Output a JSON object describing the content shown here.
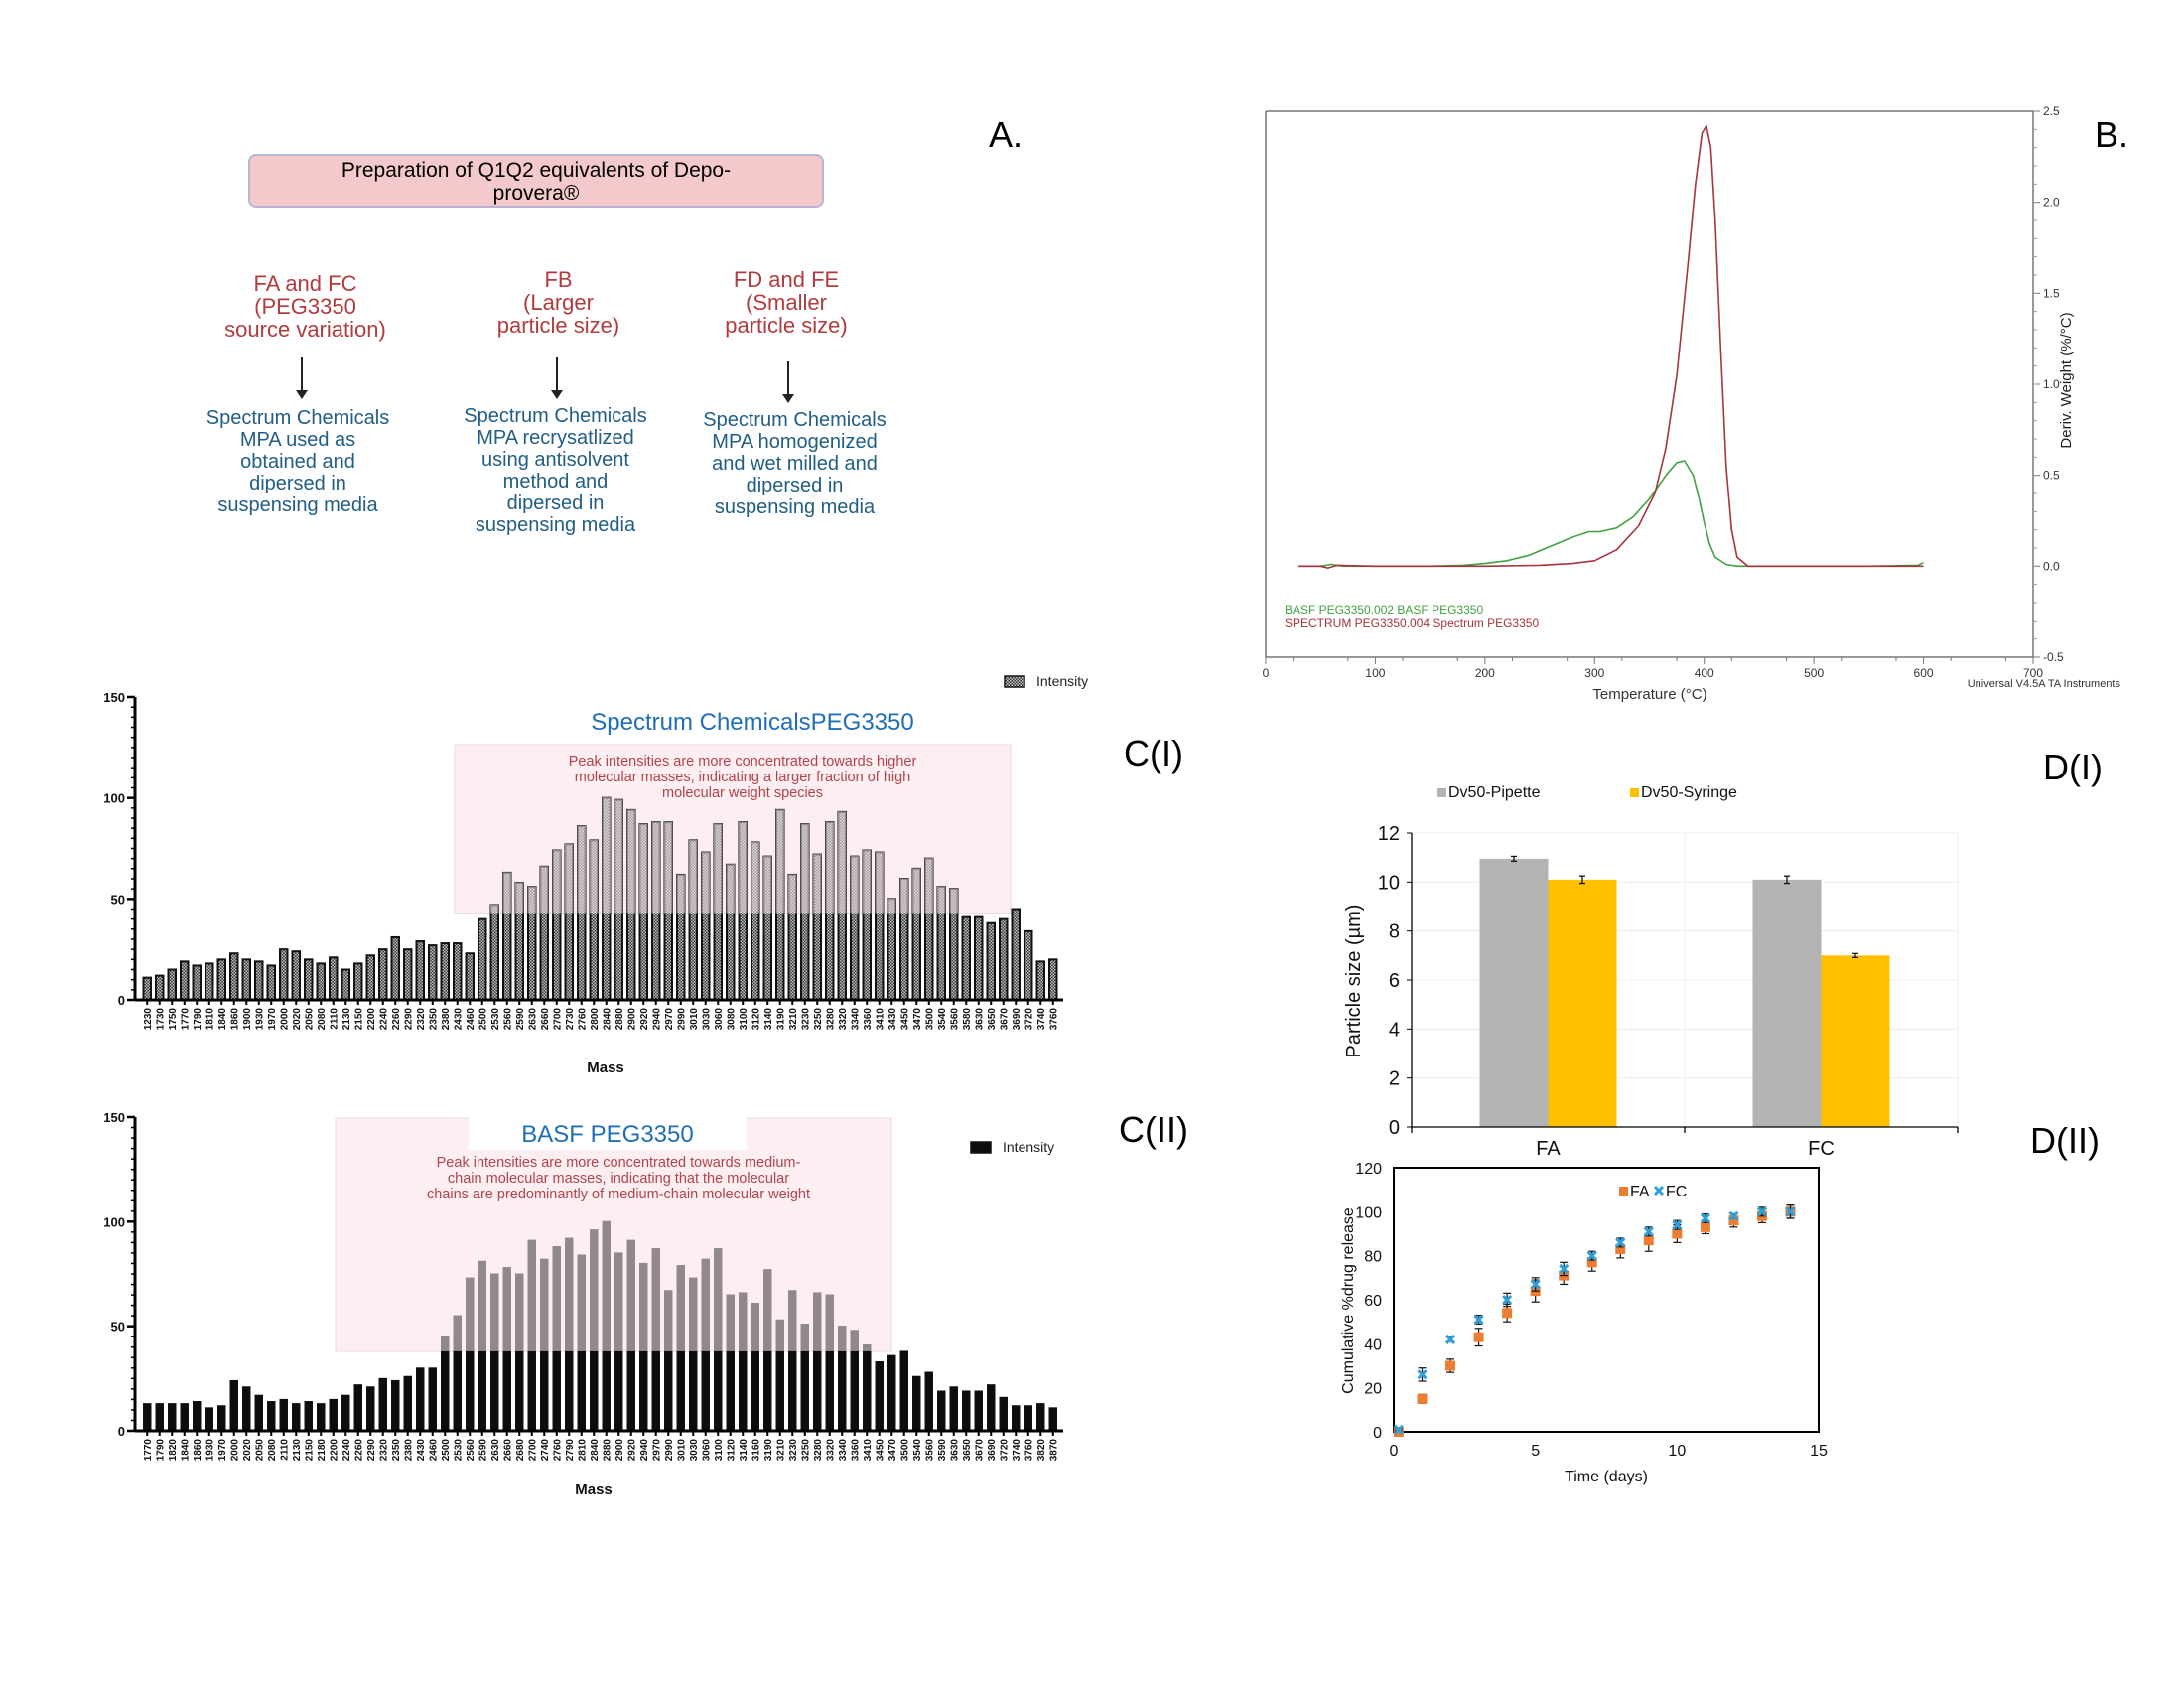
{
  "panel_labels": {
    "a": "A.",
    "b": "B.",
    "c1": "C(I)",
    "c2": "C(II)",
    "d1": "D(I)",
    "d2": "D(II)"
  },
  "flowchart": {
    "title": "Preparation of Q1Q2 equivalents of Depo-provera®",
    "title_lines": [
      "Preparation of Q1Q2 equivalents of Depo-",
      "provera®"
    ],
    "branches": [
      {
        "heading_lines": [
          "FA and FC",
          "(PEG3350",
          "source variation)"
        ],
        "description_lines": [
          "Spectrum Chemicals",
          "MPA used as",
          "obtained and",
          "dipersed in",
          "suspensing media"
        ]
      },
      {
        "heading_lines": [
          "FB",
          "(Larger",
          "particle size)"
        ],
        "description_lines": [
          "Spectrum Chemicals",
          "MPA recrysatlized",
          "using antisolvent",
          "method and",
          "dipersed in",
          "suspensing media"
        ]
      },
      {
        "heading_lines": [
          "FD and FE",
          "(Smaller",
          "particle size)"
        ],
        "description_lines": [
          "Spectrum Chemicals",
          "MPA homogenized",
          "and wet milled and",
          "dipersed in",
          "suspensing media"
        ]
      }
    ]
  },
  "chart_data": [
    {
      "id": "B",
      "type": "line",
      "title": "",
      "xlabel": "Temperature (°C)",
      "ylabel": "Deriv. Weight (%/°C)",
      "xlim": [
        0,
        700
      ],
      "ylim": [
        -0.5,
        2.5
      ],
      "xticks": [
        "0",
        "100",
        "200",
        "300",
        "400",
        "500",
        "600",
        "700"
      ],
      "yticks": [
        "-0.5",
        "0.0",
        "0.5",
        "1.0",
        "1.5",
        "2.0",
        "2.5"
      ],
      "y_axis_side": "right",
      "footer": "Universal V4.5A TA Instruments",
      "legend_placement": "bottom-left",
      "series": [
        {
          "name": "BASF PEG3350.002  BASF PEG3350",
          "color": "#3fa33f",
          "x": [
            30,
            50,
            60,
            70,
            100,
            150,
            180,
            200,
            220,
            240,
            260,
            280,
            295,
            305,
            320,
            335,
            350,
            365,
            375,
            382,
            390,
            395,
            400,
            405,
            410,
            420,
            430,
            450,
            500,
            550,
            595,
            600
          ],
          "y": [
            0.0,
            0.0,
            0.01,
            0.0,
            0.0,
            0.0,
            0.005,
            0.015,
            0.03,
            0.06,
            0.11,
            0.16,
            0.19,
            0.19,
            0.21,
            0.27,
            0.37,
            0.5,
            0.57,
            0.58,
            0.5,
            0.38,
            0.24,
            0.12,
            0.05,
            0.01,
            0.0,
            0.0,
            0.0,
            0.0,
            0.005,
            0.02
          ]
        },
        {
          "name": "SPECTRUM PEG3350.004  Spectrum PEG3350",
          "color": "#a8333b",
          "x": [
            30,
            50,
            57,
            65,
            100,
            200,
            250,
            280,
            300,
            320,
            340,
            355,
            365,
            375,
            385,
            392,
            398,
            402,
            406,
            410,
            415,
            420,
            425,
            430,
            440,
            500,
            600
          ],
          "y": [
            0.0,
            0.0,
            -0.01,
            0.005,
            0.0,
            0.0,
            0.005,
            0.015,
            0.03,
            0.09,
            0.22,
            0.4,
            0.65,
            1.05,
            1.65,
            2.1,
            2.38,
            2.42,
            2.3,
            1.9,
            1.2,
            0.55,
            0.2,
            0.05,
            0.0,
            0.0,
            0.0
          ]
        }
      ]
    },
    {
      "id": "C_I",
      "type": "bar",
      "title": "Spectrum ChemicalsPEG3350",
      "annotation": "Peak intensities are more concentrated towards higher molecular masses, indicating a larger fraction of high molecular weight species",
      "annotation_lines": [
        "Peak intensities are more concentrated towards higher",
        "molecular masses, indicating a larger fraction of high",
        "molecular weight species"
      ],
      "xlabel": "Mass",
      "ylabel": "",
      "ylim": [
        0,
        150
      ],
      "yticks": [
        "0",
        "50",
        "100",
        "150"
      ],
      "legend": "Intensity",
      "legend_placement": "top-right",
      "highlight_range": [
        "2430",
        "3580"
      ],
      "highlight_y_from": 43,
      "categories": [
        "1230",
        "1730",
        "1750",
        "1770",
        "1790",
        "1810",
        "1840",
        "1860",
        "1900",
        "1930",
        "1970",
        "2000",
        "2020",
        "2050",
        "2080",
        "2110",
        "2130",
        "2150",
        "2200",
        "2240",
        "2260",
        "2290",
        "2320",
        "2350",
        "2380",
        "2430",
        "2460",
        "2500",
        "2530",
        "2560",
        "2590",
        "2630",
        "2660",
        "2700",
        "2730",
        "2760",
        "2800",
        "2840",
        "2880",
        "2900",
        "2920",
        "2940",
        "2970",
        "2990",
        "3010",
        "3030",
        "3060",
        "3080",
        "3100",
        "3120",
        "3140",
        "3190",
        "3210",
        "3230",
        "3250",
        "3280",
        "3320",
        "3340",
        "3360",
        "3410",
        "3430",
        "3450",
        "3470",
        "3500",
        "3540",
        "3560",
        "3580",
        "3630",
        "3650",
        "3670",
        "3690",
        "3720",
        "3740",
        "3760"
      ],
      "values": [
        11,
        12,
        15,
        19,
        17,
        18,
        20,
        23,
        20,
        19,
        17,
        25,
        24,
        20,
        18,
        21,
        15,
        18,
        22,
        25,
        31,
        25,
        29,
        27,
        28,
        28,
        23,
        40,
        47,
        63,
        58,
        56,
        66,
        74,
        77,
        86,
        79,
        100,
        99,
        94,
        87,
        88,
        88,
        62,
        79,
        73,
        87,
        67,
        88,
        78,
        71,
        94,
        62,
        87,
        72,
        88,
        93,
        71,
        74,
        73,
        50,
        60,
        65,
        70,
        56,
        55,
        41,
        41,
        38,
        40,
        45,
        34,
        19,
        20
      ]
    },
    {
      "id": "C_II",
      "type": "bar",
      "title": "BASF PEG3350",
      "annotation": "Peak intensities are more concentrated towards medium-chain molecular masses, indicating that the molecular chains are predominantly of medium-chain molecular weight",
      "annotation_lines": [
        "Peak intensities are more concentrated towards medium-",
        "chain molecular masses, indicating that the molecular",
        "chains are predominantly of medium-chain molecular weight"
      ],
      "xlabel": "Mass",
      "ylabel": "",
      "ylim": [
        0,
        150
      ],
      "yticks": [
        "0",
        "50",
        "100",
        "150"
      ],
      "legend": "Intensity",
      "legend_placement": "top-right",
      "highlight_y_from": 38,
      "categories": [
        "1770",
        "1790",
        "1820",
        "1840",
        "1860",
        "1930",
        "1970",
        "2000",
        "2020",
        "2050",
        "2080",
        "2110",
        "2130",
        "2150",
        "2180",
        "2200",
        "2240",
        "2260",
        "2290",
        "2320",
        "2350",
        "2380",
        "2430",
        "2460",
        "2500",
        "2530",
        "2560",
        "2590",
        "2630",
        "2660",
        "2680",
        "2700",
        "2740",
        "2760",
        "2790",
        "2810",
        "2840",
        "2880",
        "2900",
        "2920",
        "2940",
        "2970",
        "2990",
        "3010",
        "3030",
        "3060",
        "3100",
        "3120",
        "3140",
        "3160",
        "3190",
        "3210",
        "3230",
        "3250",
        "3280",
        "3320",
        "3340",
        "3360",
        "3410",
        "3450",
        "3470",
        "3500",
        "3540",
        "3560",
        "3590",
        "3630",
        "3650",
        "3670",
        "3690",
        "3720",
        "3740",
        "3760",
        "3820",
        "3870"
      ],
      "values": [
        13,
        13,
        13,
        13,
        14,
        11,
        12,
        24,
        21,
        17,
        14,
        15,
        13,
        14,
        13,
        15,
        17,
        22,
        21,
        25,
        24,
        26,
        30,
        30,
        45,
        55,
        73,
        81,
        75,
        78,
        75,
        91,
        82,
        88,
        92,
        84,
        96,
        100,
        85,
        91,
        80,
        87,
        67,
        79,
        73,
        82,
        87,
        65,
        66,
        61,
        77,
        53,
        67,
        51,
        66,
        65,
        50,
        48,
        41,
        33,
        36,
        38,
        26,
        28,
        19,
        21,
        19,
        19,
        22,
        16,
        12,
        12,
        13,
        11
      ]
    },
    {
      "id": "D_I",
      "type": "bar",
      "title": "",
      "xlabel": "",
      "ylabel": "Particle size (µm)",
      "ylim": [
        0,
        12
      ],
      "yticks": [
        "0",
        "2",
        "4",
        "6",
        "8",
        "10",
        "12"
      ],
      "grid": true,
      "legend_placement": "top",
      "categories": [
        "FA",
        "FC"
      ],
      "series": [
        {
          "name": "Dv50-Pipette",
          "color": "#b3b3b3",
          "values": [
            10.95,
            10.1
          ],
          "errors": [
            0.1,
            0.15
          ]
        },
        {
          "name": "Dv50-Syringe",
          "color": "#ffc000",
          "values": [
            10.1,
            7.0
          ],
          "errors": [
            0.15,
            0.08
          ]
        }
      ]
    },
    {
      "id": "D_II",
      "type": "scatter",
      "title": "",
      "xlabel": "Time (days)",
      "ylabel": "Cumulative %drug release",
      "xlim": [
        0,
        15
      ],
      "ylim": [
        0,
        120
      ],
      "xticks": [
        "0",
        "5",
        "10",
        "15"
      ],
      "yticks": [
        "0",
        "20",
        "40",
        "60",
        "80",
        "100",
        "120"
      ],
      "legend_placement": "top-center",
      "series": [
        {
          "name": "FA",
          "marker": "square",
          "color": "#ed7d31",
          "x": [
            0.17,
            1,
            2,
            3,
            4,
            5,
            6,
            7,
            8,
            9,
            10,
            11,
            12,
            13,
            14
          ],
          "y": [
            0,
            15,
            30,
            43,
            54,
            64,
            71,
            77,
            83,
            87,
            90,
            93,
            96,
            98,
            100
          ],
          "errors": [
            0.5,
            2,
            3,
            4,
            4,
            5,
            4,
            4,
            4,
            5,
            4,
            3,
            3,
            3,
            3
          ]
        },
        {
          "name": "FC",
          "marker": "x",
          "color": "#2e9fd8",
          "x": [
            0.17,
            1,
            2,
            3,
            4,
            5,
            6,
            7,
            8,
            9,
            10,
            11,
            12,
            13,
            14
          ],
          "y": [
            1,
            26,
            42,
            51,
            60,
            67,
            74,
            80,
            86,
            91,
            94,
            97,
            98,
            100,
            100
          ],
          "errors": [
            0.5,
            3,
            1,
            2,
            3,
            3,
            3,
            2,
            2,
            2,
            2,
            2,
            1,
            2,
            3
          ]
        }
      ]
    }
  ]
}
